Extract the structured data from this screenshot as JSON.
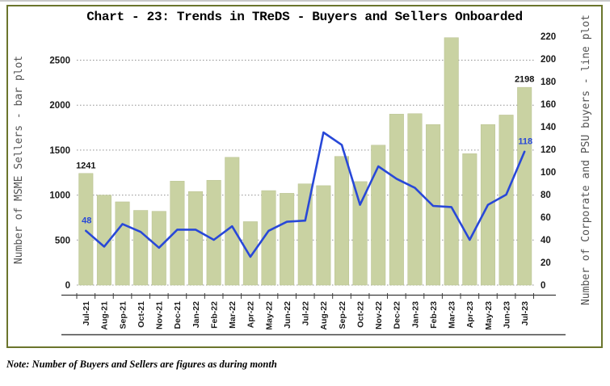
{
  "page": {
    "title": "Chart - 23: Trends in TReDS - Buyers and Sellers Onboarded"
  },
  "note": {
    "label": "Note:",
    "text": "Number of Buyers and Sellers are figures as during month"
  },
  "colors": {
    "bar": "#c9d2a2",
    "bar_edge": "#b7c08e",
    "line": "#2848d8",
    "grid": "#909090",
    "axis": "#3a3a3a",
    "frame": "#6b752c"
  },
  "chart_data": {
    "type": "combo",
    "title": "Chart - 23: Trends in TReDS - Buyers and Sellers Onboarded",
    "categories": [
      "Jul-21",
      "Aug-21",
      "Sep-21",
      "Oct-21",
      "Nov-21",
      "Dec-21",
      "Jan-22",
      "Feb-22",
      "Mar-22",
      "Apr-22",
      "May-22",
      "Jun-22",
      "Jul-22",
      "Aug-22",
      "Sep-22",
      "Oct-22",
      "Nov-22",
      "Dec-22",
      "Jan-23",
      "Feb-23",
      "Mar-23",
      "Apr-23",
      "May-23",
      "Jun-23",
      "Jul-23"
    ],
    "series": [
      {
        "name": "Number of MSME Sellers",
        "type": "bar",
        "axis": "left",
        "color": "#c9d2a2",
        "values": [
          1241,
          1000,
          925,
          830,
          820,
          1155,
          1040,
          1165,
          1420,
          705,
          1050,
          1020,
          1125,
          1105,
          1430,
          1150,
          1555,
          1900,
          1905,
          1785,
          2750,
          1460,
          1785,
          1890,
          2198
        ]
      },
      {
        "name": "Number of Corporate and PSU buyers",
        "type": "line",
        "axis": "right",
        "color": "#2848d8",
        "values": [
          48,
          34,
          54,
          47,
          33,
          49,
          49,
          40,
          52,
          25,
          48,
          56,
          57,
          135,
          124,
          71,
          105,
          94,
          86,
          70,
          69,
          40,
          71,
          80,
          118
        ]
      }
    ],
    "left_axis": {
      "title": "Number of MSME Sellers - bar plot",
      "min": 0,
      "max": 2780,
      "tick_step": 500,
      "last_labeled_tick": 2500
    },
    "right_axis": {
      "title": "Number of Corporate and PSU buyers - line plot",
      "min": 0,
      "max": 220,
      "tick_step": 20
    },
    "grid": {
      "horizontal": true,
      "style": "dotted"
    },
    "legend": "none",
    "point_labels": [
      {
        "series": "bar",
        "category": "Jul-21",
        "text": "1241"
      },
      {
        "series": "bar",
        "category": "Jul-23",
        "text": "2198"
      },
      {
        "series": "line",
        "category": "Jul-21",
        "text": "48"
      },
      {
        "series": "line",
        "category": "Jul-23",
        "text": "118"
      }
    ]
  }
}
